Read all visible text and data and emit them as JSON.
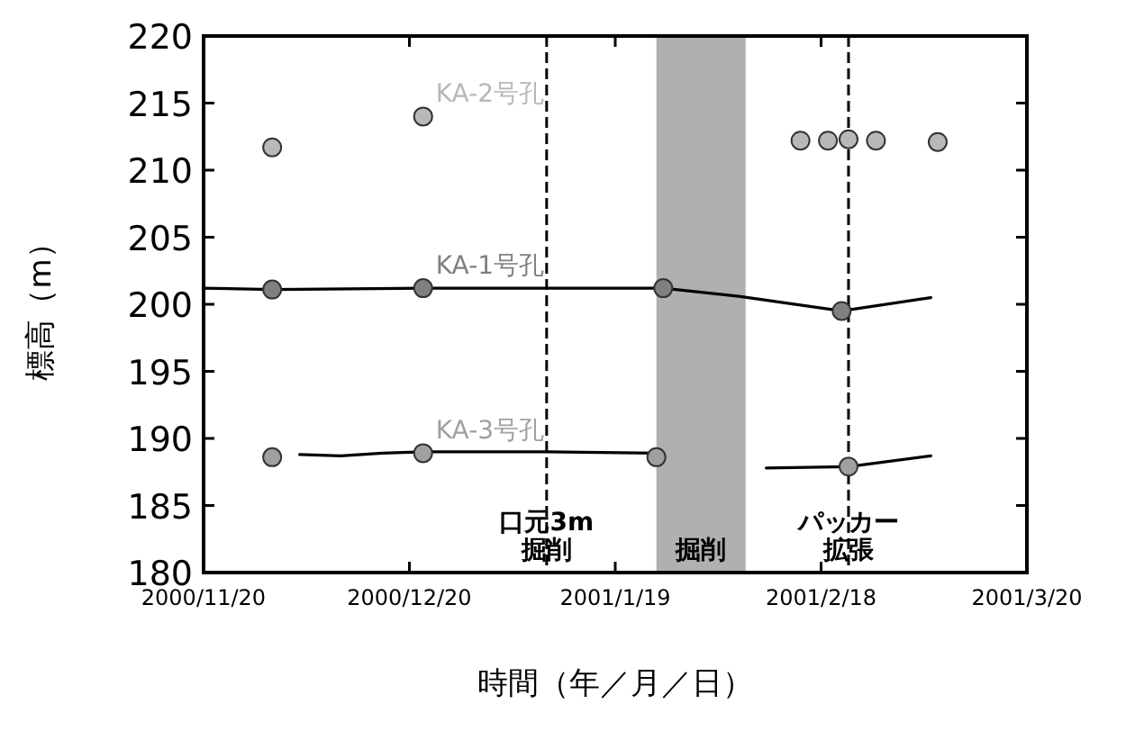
{
  "chart_data": {
    "type": "line",
    "xlabel": "時間（年／月／日）",
    "ylabel": "標高（m）",
    "xlim": [
      "2000-11-20",
      "2001-03-20"
    ],
    "xticks": [
      {
        "value": "2000-11-20",
        "label": "2000/11/20"
      },
      {
        "value": "2000-12-20",
        "label": "2000/12/20"
      },
      {
        "value": "2001-01-19",
        "label": "2001/1/19"
      },
      {
        "value": "2001-02-18",
        "label": "2001/2/18"
      },
      {
        "value": "2001-03-20",
        "label": "2001/3/20"
      }
    ],
    "ylim": [
      180,
      220
    ],
    "yticks": [
      180,
      185,
      190,
      195,
      200,
      205,
      210,
      215,
      220
    ],
    "series": [
      {
        "type": "line",
        "color": "#000000",
        "marker": "none",
        "x": [
          "2000-11-20",
          "2000-11-30",
          "2000-12-22",
          "2001-01-09",
          "2001-01-26",
          "2001-02-06",
          "2001-02-21",
          "2001-03-06"
        ],
        "values": [
          201.2,
          201.1,
          201.2,
          201.2,
          201.2,
          200.6,
          199.5,
          200.5
        ]
      },
      {
        "type": "scatter",
        "name": "KA-1号孔",
        "color": "#808080",
        "marker": "circle",
        "x": [
          "2000-11-30",
          "2000-12-22",
          "2001-01-26",
          "2001-02-21"
        ],
        "values": [
          201.1,
          201.2,
          201.2,
          199.5
        ]
      },
      {
        "type": "scatter",
        "name": "KA-2号孔",
        "color": "#b8b8b8",
        "marker": "circle",
        "x": [
          "2000-11-30",
          "2000-12-22",
          "2001-02-15",
          "2001-02-19",
          "2001-02-22",
          "2001-02-26",
          "2001-03-07"
        ],
        "values": [
          211.7,
          214.0,
          212.2,
          212.2,
          212.3,
          212.2,
          212.1
        ]
      },
      {
        "type": "line",
        "color": "#000000",
        "marker": "none",
        "x": [
          "2000-12-04",
          "2000-12-10",
          "2000-12-16",
          "2000-12-22",
          "2001-01-09",
          "2001-01-25"
        ],
        "values": [
          188.8,
          188.7,
          188.9,
          189.0,
          189.0,
          188.9
        ]
      },
      {
        "type": "line",
        "color": "#000000",
        "marker": "none",
        "x": [
          "2001-02-10",
          "2001-02-22",
          "2001-03-06"
        ],
        "values": [
          187.8,
          187.9,
          188.7
        ]
      },
      {
        "type": "scatter",
        "name": "KA-3号孔",
        "color": "#a0a0a0",
        "marker": "circle",
        "x": [
          "2000-11-30",
          "2000-12-22",
          "2001-01-25",
          "2001-02-22"
        ],
        "values": [
          188.6,
          188.9,
          188.6,
          187.9
        ]
      }
    ],
    "ref_lines": [
      {
        "axis": "x",
        "value": "2001-01-09",
        "label": "口元3m掘削",
        "line_style": "dashed"
      },
      {
        "axis": "x",
        "value": "2001-02-22",
        "label": "パッカー拡張",
        "line_style": "dashed"
      }
    ],
    "bands": [
      {
        "axis": "x",
        "from": "2001-01-25",
        "to": "2001-02-07",
        "label": "掘削",
        "color": "#b0b0b0"
      }
    ]
  }
}
